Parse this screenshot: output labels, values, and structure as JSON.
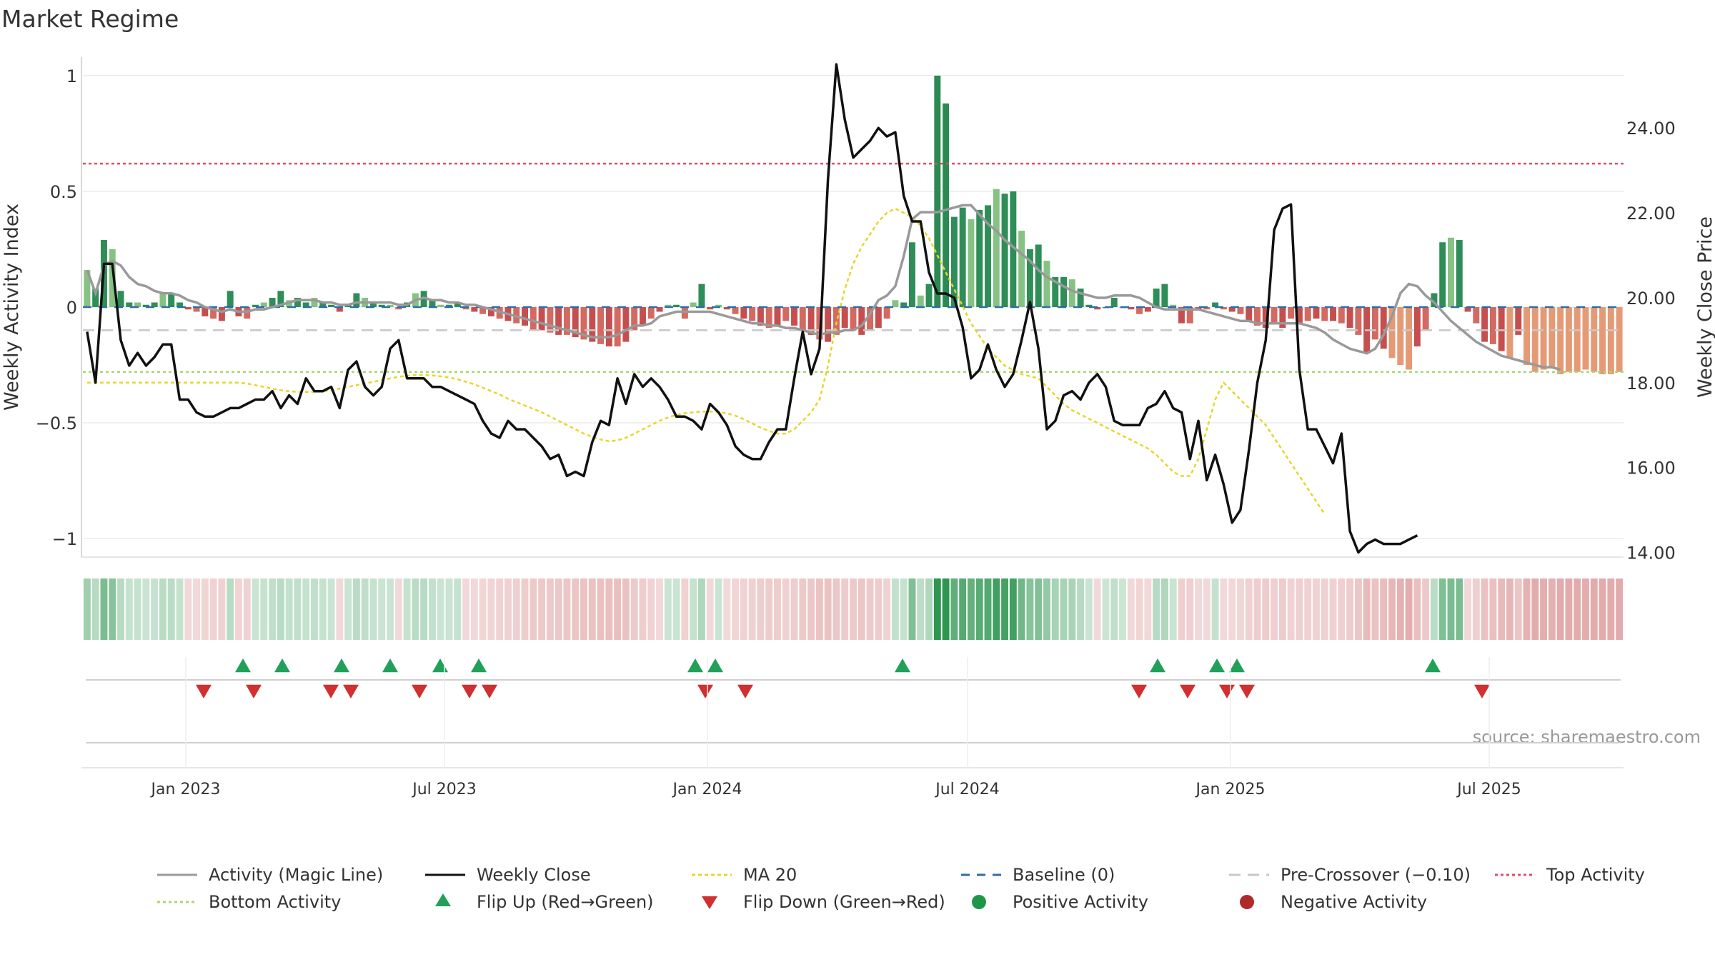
{
  "chart_data": {
    "title": "Market Regime",
    "type": "bar",
    "source": "source: sharemaestro.com",
    "left_axis": {
      "label": "Weekly Activity Index",
      "range": [
        -1.08,
        1.08
      ],
      "ticks": [
        1,
        0.5,
        0,
        -0.5,
        -1
      ],
      "tick_labels": [
        "1",
        "0.5",
        "0",
        "−0.5",
        "−1"
      ]
    },
    "right_axis": {
      "label": "Weekly Close Price",
      "range": [
        13.89,
        25.67
      ],
      "ticks": [
        24,
        22,
        20,
        18,
        16,
        14
      ],
      "tick_labels": [
        "24.00",
        "22.00",
        "20.00",
        "18.00",
        "16.00",
        "14.00"
      ]
    },
    "x_axis": {
      "start_date": "2022-10-21",
      "end_date": "2025-10-03",
      "tick_labels": [
        "Jan 2023",
        "Jul 2023",
        "Jan 2024",
        "Jul 2024",
        "Jan 2025",
        "Jul 2025"
      ],
      "tick_dates": [
        "2023-01-01",
        "2023-07-01",
        "2024-01-01",
        "2024-07-01",
        "2025-01-01",
        "2025-07-01"
      ]
    },
    "reference_lines": {
      "baseline": 0,
      "pre_crossover": -0.1,
      "top_activity": 0.62,
      "bottom_activity": -0.28
    },
    "weekly_activity": [
      0.16,
      0.08,
      0.29,
      0.25,
      0.07,
      0.02,
      0.02,
      0.01,
      0.02,
      0.06,
      0.06,
      0.02,
      -0.01,
      -0.02,
      -0.04,
      -0.05,
      -0.06,
      0.07,
      -0.04,
      -0.05,
      0.01,
      0.02,
      0.04,
      0.07,
      0.03,
      0.04,
      0.02,
      0.04,
      0.02,
      0.01,
      -0.02,
      0.01,
      0.06,
      0.04,
      0.02,
      0.01,
      0.01,
      -0.01,
      0.02,
      0.06,
      0.07,
      0.03,
      0.01,
      0.01,
      0.02,
      -0.01,
      -0.02,
      -0.03,
      -0.04,
      -0.05,
      -0.06,
      -0.07,
      -0.08,
      -0.1,
      -0.1,
      -0.11,
      -0.12,
      -0.12,
      -0.13,
      -0.14,
      -0.15,
      -0.16,
      -0.17,
      -0.17,
      -0.15,
      -0.1,
      -0.08,
      -0.05,
      -0.02,
      0.01,
      0.01,
      -0.05,
      0.02,
      0.1,
      -0.01,
      0.01,
      -0.01,
      -0.03,
      -0.05,
      -0.06,
      -0.08,
      -0.09,
      -0.08,
      -0.06,
      -0.08,
      -0.1,
      -0.12,
      -0.14,
      -0.15,
      -0.12,
      -0.09,
      -0.1,
      -0.12,
      -0.1,
      -0.09,
      -0.05,
      0.03,
      0.02,
      0.28,
      0.05,
      0.1,
      1.0,
      0.88,
      0.39,
      0.43,
      0.38,
      0.42,
      0.44,
      0.51,
      0.49,
      0.5,
      0.33,
      0.25,
      0.27,
      0.2,
      0.13,
      0.13,
      0.12,
      0.08,
      0.01,
      -0.01,
      0.0,
      0.04,
      0.0,
      -0.01,
      -0.03,
      -0.02,
      0.08,
      0.1,
      0.01,
      -0.07,
      -0.07,
      -0.01,
      -0.01,
      0.02,
      -0.01,
      -0.02,
      -0.03,
      -0.06,
      -0.08,
      -0.09,
      -0.07,
      -0.09,
      -0.05,
      -0.07,
      -0.06,
      -0.05,
      -0.06,
      -0.06,
      -0.07,
      -0.09,
      -0.12,
      -0.2,
      -0.14,
      -0.18,
      -0.22,
      -0.25,
      -0.27,
      -0.17,
      -0.1,
      0.06,
      0.28,
      0.3,
      0.29,
      -0.02,
      -0.07,
      -0.15,
      -0.16,
      -0.19,
      -0.22,
      -0.12,
      -0.25,
      -0.28,
      -0.27,
      -0.26,
      -0.29,
      -0.28,
      -0.28,
      -0.27,
      -0.28,
      -0.29,
      -0.29,
      -0.28
    ],
    "weekly_close": [
      19.2,
      18.0,
      20.8,
      20.8,
      19.0,
      18.4,
      18.7,
      18.4,
      18.6,
      18.9,
      18.9,
      17.6,
      17.6,
      17.3,
      17.2,
      17.2,
      17.3,
      17.4,
      17.4,
      17.5,
      17.6,
      17.6,
      17.8,
      17.4,
      17.7,
      17.5,
      18.1,
      17.8,
      17.8,
      17.9,
      17.4,
      18.3,
      18.5,
      17.9,
      17.7,
      17.9,
      18.8,
      19.0,
      18.1,
      18.1,
      18.1,
      17.9,
      17.9,
      17.8,
      17.7,
      17.6,
      17.5,
      17.1,
      16.8,
      16.7,
      17.1,
      16.9,
      16.9,
      16.7,
      16.5,
      16.2,
      16.3,
      15.8,
      15.9,
      15.8,
      16.6,
      17.1,
      17.0,
      18.1,
      17.5,
      18.2,
      17.9,
      18.1,
      17.9,
      17.6,
      17.2,
      17.2,
      17.1,
      16.9,
      17.5,
      17.3,
      17.0,
      16.5,
      16.3,
      16.2,
      16.2,
      16.6,
      16.9,
      16.9,
      18.1,
      19.2,
      18.2,
      18.8,
      22.8,
      25.5,
      24.2,
      23.3,
      23.5,
      23.7,
      24.0,
      23.8,
      23.9,
      22.4,
      21.8,
      21.8,
      20.6,
      20.1,
      20.1,
      20.0,
      19.3,
      18.1,
      18.3,
      18.9,
      18.3,
      17.9,
      18.2,
      19.0,
      19.9,
      18.8,
      16.9,
      17.1,
      17.7,
      17.8,
      17.6,
      18.0,
      18.2,
      17.9,
      17.1,
      17.0,
      17.0,
      17.0,
      17.4,
      17.5,
      17.8,
      17.4,
      17.3,
      16.2,
      17.1,
      15.7,
      16.3,
      15.6,
      14.7,
      15.0,
      16.4,
      18.0,
      19.0,
      21.6,
      22.1,
      22.2,
      18.3,
      16.9,
      16.9,
      16.5,
      16.1,
      16.8,
      14.5,
      14.0,
      14.2,
      14.3,
      14.2,
      14.2,
      14.2,
      14.3,
      14.4
    ],
    "magic_line": [
      0.16,
      0.06,
      0.18,
      0.2,
      0.18,
      0.13,
      0.1,
      0.09,
      0.07,
      0.06,
      0.06,
      0.05,
      0.03,
      0.02,
      0.0,
      -0.01,
      -0.02,
      -0.01,
      -0.02,
      -0.02,
      -0.01,
      -0.01,
      0.0,
      0.01,
      0.02,
      0.03,
      0.03,
      0.03,
      0.02,
      0.02,
      0.01,
      0.01,
      0.02,
      0.02,
      0.02,
      0.02,
      0.02,
      0.01,
      0.01,
      0.03,
      0.04,
      0.03,
      0.03,
      0.02,
      0.02,
      0.01,
      0.01,
      0.0,
      -0.01,
      -0.02,
      -0.03,
      -0.04,
      -0.05,
      -0.06,
      -0.07,
      -0.08,
      -0.09,
      -0.1,
      -0.11,
      -0.12,
      -0.13,
      -0.13,
      -0.13,
      -0.12,
      -0.1,
      -0.08,
      -0.08,
      -0.07,
      -0.04,
      -0.03,
      -0.02,
      -0.02,
      -0.02,
      -0.02,
      -0.02,
      -0.03,
      -0.04,
      -0.05,
      -0.06,
      -0.07,
      -0.07,
      -0.08,
      -0.08,
      -0.09,
      -0.09,
      -0.1,
      -0.11,
      -0.12,
      -0.11,
      -0.11,
      -0.1,
      -0.1,
      -0.08,
      -0.03,
      0.03,
      0.05,
      0.09,
      0.22,
      0.38,
      0.41,
      0.41,
      0.41,
      0.42,
      0.43,
      0.44,
      0.44,
      0.4,
      0.36,
      0.33,
      0.29,
      0.26,
      0.23,
      0.2,
      0.16,
      0.13,
      0.11,
      0.09,
      0.07,
      0.06,
      0.05,
      0.04,
      0.04,
      0.05,
      0.05,
      0.05,
      0.04,
      0.02,
      0.0,
      -0.01,
      -0.01,
      -0.01,
      -0.01,
      -0.01,
      -0.02,
      -0.03,
      -0.04,
      -0.05,
      -0.06,
      -0.06,
      -0.07,
      -0.07,
      -0.07,
      -0.07,
      -0.07,
      -0.07,
      -0.08,
      -0.09,
      -0.11,
      -0.14,
      -0.16,
      -0.18,
      -0.19,
      -0.2,
      -0.18,
      -0.12,
      -0.04,
      0.06,
      0.1,
      0.09,
      0.05,
      0.02,
      -0.02,
      -0.06,
      -0.09,
      -0.12,
      -0.15,
      -0.17,
      -0.19,
      -0.21,
      -0.22,
      -0.23,
      -0.24,
      -0.25,
      -0.26,
      -0.26,
      -0.27
    ],
    "ma20": [
      18.0,
      18.0,
      18.0,
      18.0,
      18.0,
      18.0,
      18.0,
      18.0,
      18.0,
      18.0,
      18.0,
      18.0,
      18.0,
      18.0,
      18.0,
      18.0,
      18.0,
      18.0,
      18.0,
      17.98,
      17.94,
      17.9,
      17.86,
      17.82,
      17.8,
      17.78,
      17.78,
      17.78,
      17.8,
      17.82,
      17.86,
      17.9,
      17.94,
      17.98,
      18.02,
      18.06,
      18.1,
      18.14,
      18.16,
      18.18,
      18.18,
      18.17,
      18.15,
      18.12,
      18.08,
      18.02,
      17.96,
      17.88,
      17.8,
      17.72,
      17.62,
      17.54,
      17.46,
      17.38,
      17.3,
      17.2,
      17.1,
      17.0,
      16.9,
      16.8,
      16.72,
      16.66,
      16.62,
      16.64,
      16.7,
      16.8,
      16.9,
      17.0,
      17.1,
      17.18,
      17.24,
      17.28,
      17.3,
      17.32,
      17.32,
      17.3,
      17.28,
      17.22,
      17.14,
      17.04,
      16.94,
      16.86,
      16.8,
      16.8,
      16.9,
      17.1,
      17.3,
      17.6,
      18.4,
      19.4,
      20.2,
      20.8,
      21.2,
      21.5,
      21.8,
      22.0,
      22.1,
      22.0,
      21.9,
      21.7,
      21.4,
      21.0,
      20.6,
      20.2,
      19.8,
      19.4,
      19.1,
      18.8,
      18.6,
      18.4,
      18.3,
      18.2,
      18.15,
      18.1,
      17.9,
      17.7,
      17.5,
      17.35,
      17.25,
      17.15,
      17.05,
      16.95,
      16.85,
      16.75,
      16.65,
      16.55,
      16.45,
      16.3,
      16.1,
      15.9,
      15.8,
      15.8,
      16.2,
      16.9,
      17.6,
      18.0,
      17.8,
      17.6,
      17.4,
      17.2,
      17.0,
      16.7,
      16.4,
      16.1,
      15.8,
      15.5,
      15.2,
      14.9
    ]
  },
  "heat_strip": {
    "label": ""
  },
  "markers": {
    "flip_up_x": [
      7,
      11,
      17,
      22,
      27,
      31,
      52,
      54,
      70,
      96,
      118,
      124
    ],
    "flip_down_x": [
      5,
      10,
      18,
      20,
      27,
      32,
      34,
      56,
      60,
      107,
      112,
      116,
      118,
      143
    ]
  },
  "legend": [
    {
      "key": "magic",
      "label": "Activity (Magic Line)",
      "color": "#999999"
    },
    {
      "key": "close",
      "label": "Weekly Close",
      "color": "#111111"
    },
    {
      "key": "ma20",
      "label": "MA 20",
      "color": "#e6d628"
    },
    {
      "key": "baseline",
      "label": "Baseline (0)",
      "color": "#2c6ea8"
    },
    {
      "key": "pre",
      "label": "Pre-Crossover (−0.10)",
      "color": "#c8c8c8"
    },
    {
      "key": "top",
      "label": "Top Activity",
      "color": "#e04b6b"
    },
    {
      "key": "bottom",
      "label": "Bottom Activity",
      "color": "#a8d870"
    },
    {
      "key": "flipup",
      "label": "Flip Up (Red→Green)",
      "color": "#22a05a"
    },
    {
      "key": "flipdown",
      "label": "Flip Down (Green→Red)",
      "color": "#d0302f"
    },
    {
      "key": "pos",
      "label": "Positive Activity",
      "color": "#1e9648"
    },
    {
      "key": "neg",
      "label": "Negative Activity",
      "color": "#b02a2a"
    }
  ]
}
